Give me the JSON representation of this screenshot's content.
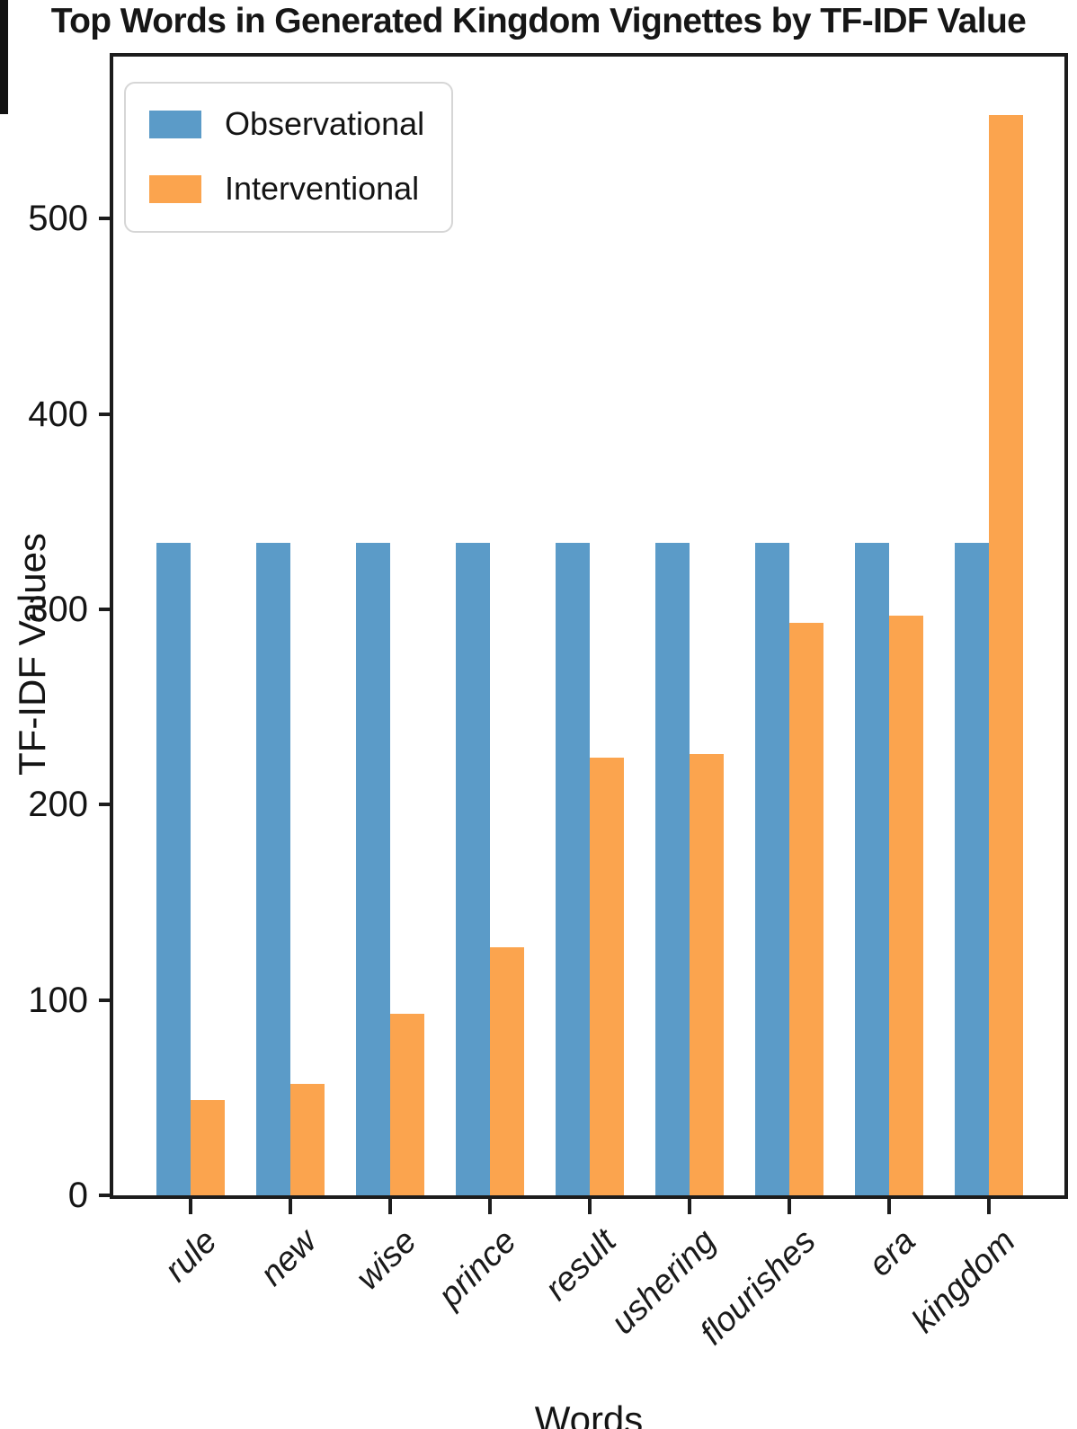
{
  "chart_data": {
    "type": "bar",
    "title": "Top Words in Generated Kingdom Vignettes by TF-IDF Value",
    "xlabel": "Words",
    "ylabel": "TF-IDF Values",
    "categories": [
      "rule",
      "new",
      "wise",
      "prince",
      "result",
      "ushering",
      "flourishes",
      "era",
      "kingdom"
    ],
    "series": [
      {
        "name": "Observational",
        "color": "#5b9bc8",
        "values": [
          334,
          334,
          334,
          334,
          334,
          334,
          334,
          334,
          334
        ]
      },
      {
        "name": "Interventional",
        "color": "#fba44e",
        "values": [
          49,
          57,
          93,
          127,
          224,
          226,
          293,
          297,
          553
        ]
      }
    ],
    "yticks": [
      0,
      100,
      200,
      300,
      400,
      500
    ],
    "ylim": [
      0,
      583
    ],
    "grid": false,
    "legend_position": "upper left",
    "xtick_style": "italic rotated 45deg",
    "axis_color": "#1c1c1c"
  }
}
